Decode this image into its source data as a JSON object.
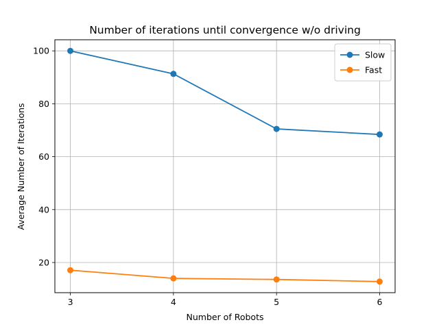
{
  "chart_data": {
    "type": "line",
    "title": "Number of iterations until convergence w/o driving",
    "xlabel": "Number of Robots",
    "ylabel": "Average Number of Iterations",
    "x": [
      3,
      4,
      5,
      6
    ],
    "xticks": [
      "3",
      "4",
      "5",
      "6"
    ],
    "yticks": [
      "20",
      "40",
      "60",
      "80",
      "100"
    ],
    "xlim": [
      2.85,
      6.15
    ],
    "ylim": [
      8.6,
      104.2
    ],
    "grid": true,
    "legend_position": "top-right",
    "series": [
      {
        "name": "Slow",
        "color": "#1f77b4",
        "marker": "circle",
        "values": [
          100.0,
          91.3,
          70.5,
          68.4
        ]
      },
      {
        "name": "Fast",
        "color": "#ff7f0e",
        "marker": "circle",
        "values": [
          17.1,
          14.0,
          13.6,
          12.8
        ]
      }
    ]
  }
}
